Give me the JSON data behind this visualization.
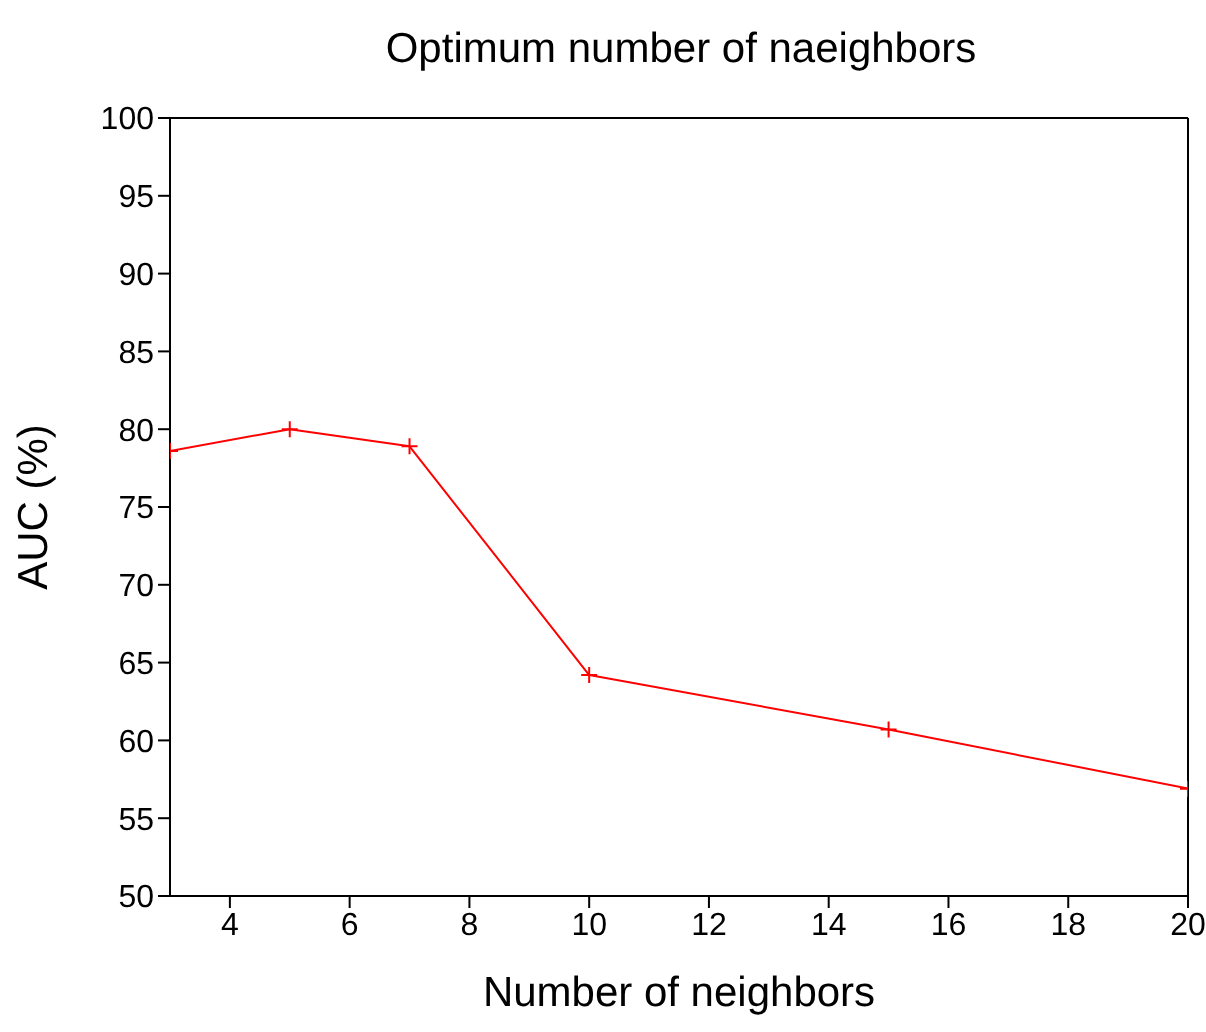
{
  "chart_data": {
    "type": "line",
    "title": "Optimum number of naeighbors",
    "xlabel": "Number of neighbors",
    "ylabel": "AUC (%)",
    "x": [
      3,
      5,
      7,
      10,
      15,
      20
    ],
    "series": [
      {
        "color": "#ff0000",
        "values": [
          78.6,
          80.0,
          78.9,
          64.2,
          60.7,
          56.9
        ]
      }
    ],
    "xlim": [
      3,
      20
    ],
    "xticks": [
      4,
      6,
      8,
      10,
      12,
      14,
      16,
      18,
      20
    ],
    "ylim": [
      50,
      100
    ],
    "yticks": [
      50,
      55,
      60,
      65,
      70,
      75,
      80,
      85,
      90,
      95,
      100
    ],
    "grid": false,
    "marker": "cross",
    "line_style": "solid"
  }
}
